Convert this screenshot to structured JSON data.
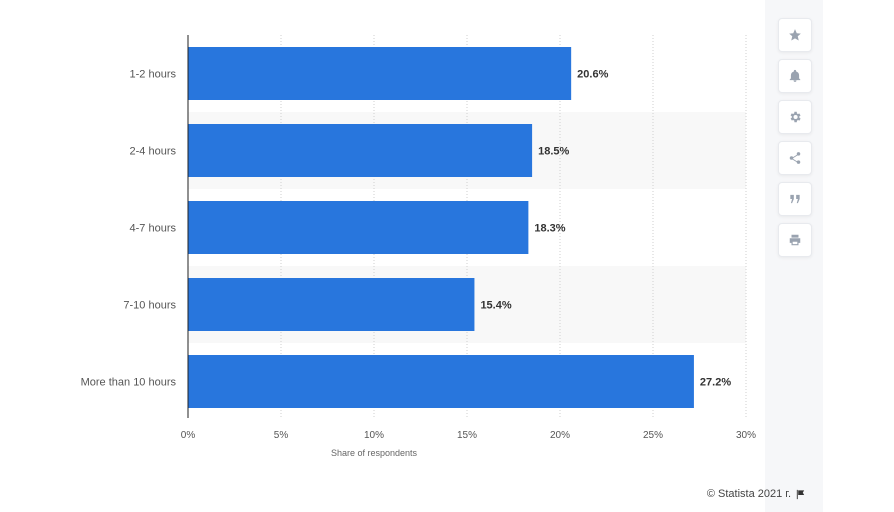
{
  "chart_data": {
    "type": "bar",
    "orientation": "horizontal",
    "categories": [
      "1-2 hours",
      "2-4 hours",
      "4-7 hours",
      "7-10 hours",
      "More than 10 hours"
    ],
    "values": [
      20.6,
      18.5,
      18.3,
      15.4,
      27.2
    ],
    "value_labels": [
      "20.6%",
      "18.5%",
      "18.3%",
      "15.4%",
      "27.2%"
    ],
    "x_ticks": [
      0,
      5,
      10,
      15,
      20,
      25,
      30
    ],
    "x_tick_labels": [
      "0%",
      "5%",
      "10%",
      "15%",
      "20%",
      "25%",
      "30%"
    ],
    "xlim": [
      0,
      30
    ],
    "xlabel": "Share of respondents",
    "ylabel": "",
    "bar_color": "#2876dd",
    "grid": true
  },
  "credit": {
    "text": "© Statista 2021 г."
  },
  "toolbar": [
    {
      "name": "star-icon"
    },
    {
      "name": "bell-icon"
    },
    {
      "name": "gear-icon"
    },
    {
      "name": "share-icon"
    },
    {
      "name": "quote-icon"
    },
    {
      "name": "print-icon"
    }
  ]
}
